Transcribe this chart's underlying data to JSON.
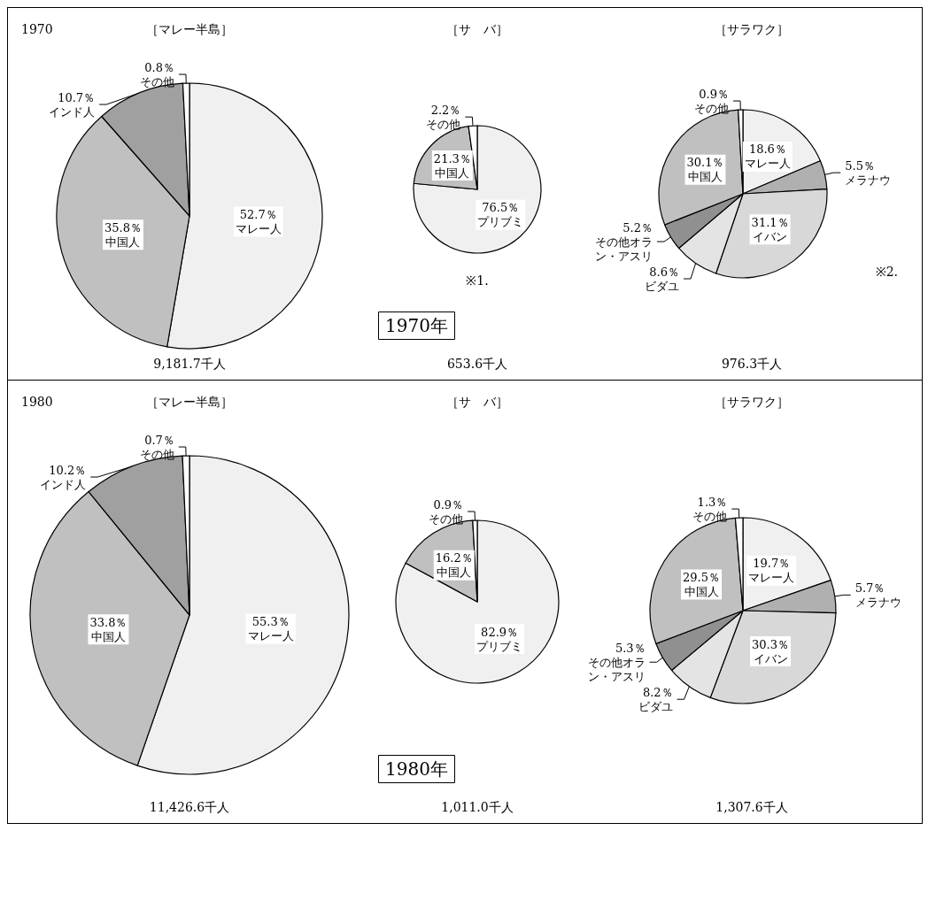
{
  "chart_data": [
    {
      "type": "pie",
      "title": "［マレー半島］",
      "subtitle": "9,181.7千人",
      "annotations": [
        "1970"
      ],
      "categories": [
        "マレー人",
        "中国人",
        "インド人",
        "その他"
      ],
      "values": [
        52.7,
        35.8,
        10.7,
        0.8
      ],
      "value_labels": [
        "52.7％",
        "35.8％",
        "10.7％",
        "0.8％"
      ],
      "colors": [
        "#f0f0f0",
        "#c0c0c0",
        "#a0a0a0",
        "#ffffff"
      ]
    },
    {
      "type": "pie",
      "title": "［サ　バ］",
      "subtitle": "653.6千人",
      "annotations": [
        "1970年",
        "※1."
      ],
      "categories": [
        "プリブミ",
        "中国人",
        "その他"
      ],
      "values": [
        76.5,
        21.3,
        2.2
      ],
      "value_labels": [
        "76.5％",
        "21.3％",
        "2.2％"
      ],
      "colors": [
        "#f0f0f0",
        "#c0c0c0",
        "#ffffff"
      ]
    },
    {
      "type": "pie",
      "title": "［サラワク］",
      "subtitle": "976.3千人",
      "annotations": [
        "※2."
      ],
      "categories": [
        "マレー人",
        "メラナウ",
        "イバン",
        "ビダユ",
        "その他オラン・アスリ",
        "中国人",
        "その他"
      ],
      "values": [
        18.6,
        5.5,
        31.1,
        8.6,
        5.2,
        30.1,
        0.9
      ],
      "value_labels": [
        "18.6％",
        "5.5％",
        "31.1％",
        "8.6％",
        "5.2％",
        "30.1％",
        "0.9％"
      ],
      "colors": [
        "#f0f0f0",
        "#b0b0b0",
        "#d8d8d8",
        "#e4e4e4",
        "#909090",
        "#c0c0c0",
        "#ffffff"
      ]
    },
    {
      "type": "pie",
      "title": "［マレー半島］",
      "subtitle": "11,426.6千人",
      "annotations": [
        "1980"
      ],
      "categories": [
        "マレー人",
        "中国人",
        "インド人",
        "その他"
      ],
      "values": [
        55.3,
        33.8,
        10.2,
        0.7
      ],
      "value_labels": [
        "55.3％",
        "33.8％",
        "10.2％",
        "0.7％"
      ],
      "colors": [
        "#f0f0f0",
        "#c0c0c0",
        "#a0a0a0",
        "#ffffff"
      ]
    },
    {
      "type": "pie",
      "title": "［サ　バ］",
      "subtitle": "1,011.0千人",
      "annotations": [
        "1980年"
      ],
      "categories": [
        "プリブミ",
        "中国人",
        "その他"
      ],
      "values": [
        82.9,
        16.2,
        0.9
      ],
      "value_labels": [
        "82.9％",
        "16.2％",
        "0.9％"
      ],
      "colors": [
        "#f0f0f0",
        "#c0c0c0",
        "#ffffff"
      ]
    },
    {
      "type": "pie",
      "title": "［サラワク］",
      "subtitle": "1,307.6千人",
      "categories": [
        "マレー人",
        "メラナウ",
        "イバン",
        "ビダユ",
        "その他オラン・アスリ",
        "中国人",
        "その他"
      ],
      "values": [
        19.7,
        5.7,
        30.3,
        8.2,
        5.3,
        29.5,
        1.3
      ],
      "value_labels": [
        "19.7％",
        "5.7％",
        "30.3％",
        "8.2％",
        "5.3％",
        "29.5％",
        "1.3％"
      ],
      "colors": [
        "#f0f0f0",
        "#b0b0b0",
        "#d8d8d8",
        "#e4e4e4",
        "#909090",
        "#c0c0c0",
        "#ffffff"
      ]
    }
  ]
}
